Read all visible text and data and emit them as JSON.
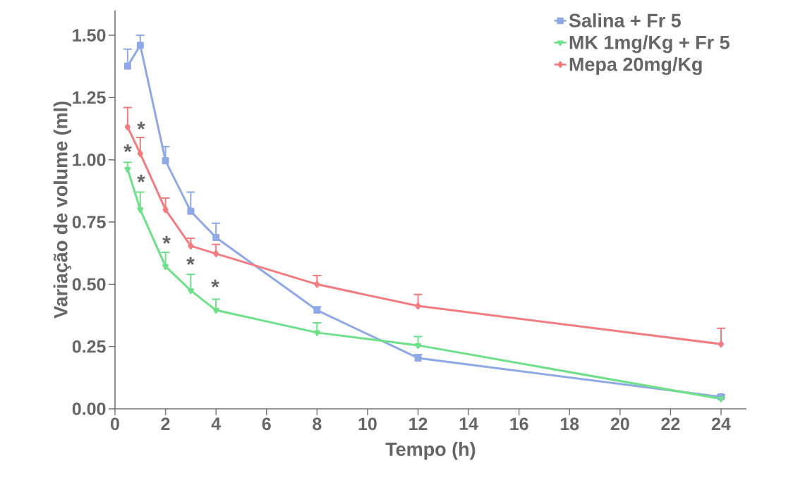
{
  "chart_data": {
    "type": "line",
    "xlabel": "Tempo (h)",
    "ylabel": "Variação de volume (ml)",
    "x": [
      0.5,
      1,
      2,
      3,
      4,
      8,
      12,
      24
    ],
    "series": [
      {
        "name": "Salina + Fr 5",
        "color": "#8fa8e6",
        "marker": "square",
        "values": [
          1.376,
          1.46,
          0.996,
          0.793,
          0.688,
          0.396,
          0.204,
          0.048
        ],
        "errors": [
          [
            1.376,
            1.444
          ],
          [
            1.46,
            1.5
          ],
          [
            0.996,
            1.053
          ],
          [
            0.793,
            0.87
          ],
          [
            0.688,
            0.745
          ],
          [
            0.396,
            0.41
          ],
          [
            0.204,
            0.218
          ],
          [
            0.048,
            0.056
          ]
        ]
      },
      {
        "name": "MK 1mg/Kg + Fr 5",
        "color": "#6ee08a",
        "marker": "triangle",
        "values": [
          0.962,
          0.8,
          0.572,
          0.475,
          0.396,
          0.306,
          0.255,
          0.04
        ],
        "errors": [
          [
            0.962,
            0.99
          ],
          [
            0.8,
            0.87
          ],
          [
            0.572,
            0.628
          ],
          [
            0.475,
            0.54
          ],
          [
            0.396,
            0.44
          ],
          [
            0.306,
            0.345
          ],
          [
            0.255,
            0.29
          ],
          [
            0.04,
            0.046
          ]
        ]
      },
      {
        "name": "Mepa 20mg/Kg",
        "color": "#f27c80",
        "marker": "diamond",
        "values": [
          1.132,
          1.025,
          0.8,
          0.654,
          0.623,
          0.5,
          0.413,
          0.26
        ],
        "errors": [
          [
            1.132,
            1.21
          ],
          [
            1.025,
            1.09
          ],
          [
            0.8,
            0.846
          ],
          [
            0.654,
            0.685
          ],
          [
            0.623,
            0.66
          ],
          [
            0.5,
            0.535
          ],
          [
            0.413,
            0.459
          ],
          [
            0.26,
            0.323
          ]
        ]
      }
    ],
    "annotations": [
      "*",
      "*",
      "*",
      "*",
      "*",
      "*"
    ],
    "xlim": [
      0,
      25
    ],
    "ylim": [
      0,
      1.6
    ],
    "xticks": [
      0,
      2,
      4,
      6,
      8,
      10,
      12,
      14,
      16,
      18,
      20,
      22,
      24
    ],
    "yticks": [
      {
        "value": 0,
        "label": "0.00"
      },
      {
        "value": 0.25,
        "label": "0.25"
      },
      {
        "value": 0.5,
        "label": "0.50"
      },
      {
        "value": 0.75,
        "label": "0.75"
      },
      {
        "value": 1.0,
        "label": "1.00"
      },
      {
        "value": 1.25,
        "label": "1.25"
      },
      {
        "value": 1.5,
        "label": "1.50"
      }
    ],
    "grid": false,
    "legend": "top right",
    "line_style": "solid"
  }
}
